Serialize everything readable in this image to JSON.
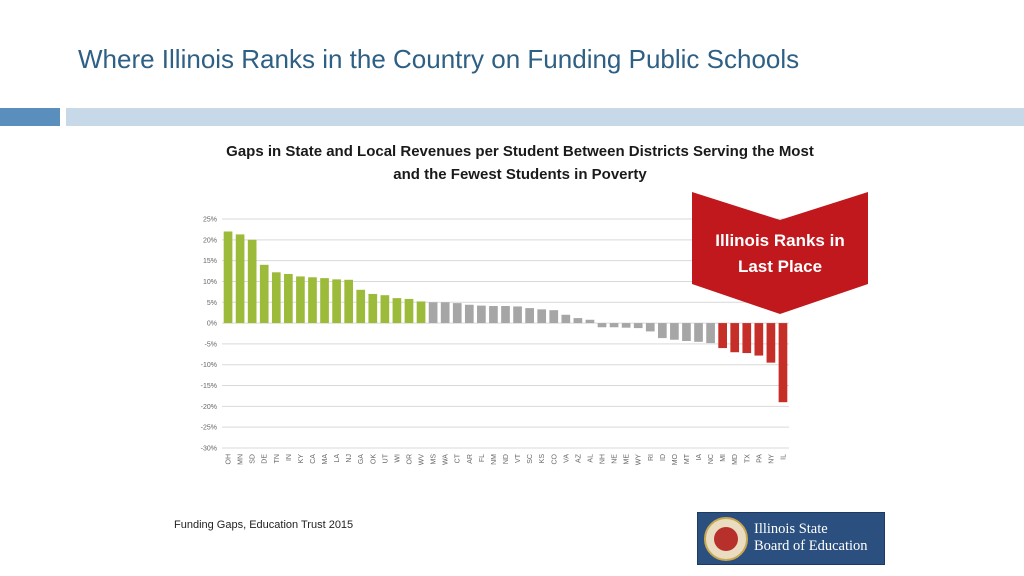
{
  "slide": {
    "title": "Where Illinois Ranks in the Country on Funding Public Schools",
    "source": "Funding Gaps, Education Trust 2015"
  },
  "callout": {
    "line1": "Illinois Ranks in",
    "line2": "Last Place",
    "color": "#c0181c"
  },
  "logo": {
    "line1": "Illinois State",
    "line2": "Board of Education"
  },
  "colors": {
    "positive": "#9dbb3a",
    "neutral": "#a6a6a6",
    "negative": "#c62e28",
    "title": "#2e5f84"
  },
  "chart_data": {
    "type": "bar",
    "title_line1": "Gaps in State and Local Revenues per Student Between Districts Serving the Most",
    "title_line2": "and the Fewest Students in Poverty",
    "ylim": [
      -30,
      25
    ],
    "yticks": [
      25,
      20,
      15,
      10,
      5,
      0,
      -5,
      -10,
      -15,
      -20,
      -25,
      -30
    ],
    "ytick_labels": [
      "25%",
      "20%",
      "15%",
      "10%",
      "5%",
      "0%",
      "-5%",
      "-10%",
      "-15%",
      "-20%",
      "-25%",
      "-30%"
    ],
    "grid": true,
    "categories": [
      "OH",
      "MN",
      "SD",
      "DE",
      "TN",
      "IN",
      "KY",
      "CA",
      "MA",
      "LA",
      "NJ",
      "GA",
      "OK",
      "UT",
      "WI",
      "OR",
      "WV",
      "MS",
      "WA",
      "CT",
      "AR",
      "FL",
      "NM",
      "ND",
      "VT",
      "SC",
      "KS",
      "CO",
      "VA",
      "AZ",
      "AL",
      "NH",
      "NE",
      "ME",
      "WY",
      "RI",
      "ID",
      "MO",
      "MT",
      "IA",
      "NC",
      "MI",
      "MD",
      "TX",
      "PA",
      "NY",
      "IL"
    ],
    "values": [
      22,
      21.3,
      20,
      14,
      12.2,
      11.8,
      11.2,
      11,
      10.8,
      10.5,
      10.4,
      8,
      7,
      6.7,
      6,
      5.8,
      5.2,
      5,
      5,
      4.8,
      4.4,
      4.2,
      4.1,
      4.1,
      4,
      3.6,
      3.3,
      3.1,
      2,
      1.2,
      0.8,
      -1,
      -1,
      -1.1,
      -1.2,
      -2,
      -3.6,
      -4,
      -4.3,
      -4.5,
      -4.8,
      -6,
      -7,
      -7.2,
      -7.8,
      -9.5,
      -19
    ],
    "bar_colors": [
      "positive",
      "positive",
      "positive",
      "positive",
      "positive",
      "positive",
      "positive",
      "positive",
      "positive",
      "positive",
      "positive",
      "positive",
      "positive",
      "positive",
      "positive",
      "positive",
      "positive",
      "neutral",
      "neutral",
      "neutral",
      "neutral",
      "neutral",
      "neutral",
      "neutral",
      "neutral",
      "neutral",
      "neutral",
      "neutral",
      "neutral",
      "neutral",
      "neutral",
      "neutral",
      "neutral",
      "neutral",
      "neutral",
      "neutral",
      "neutral",
      "neutral",
      "neutral",
      "neutral",
      "neutral",
      "negative",
      "negative",
      "negative",
      "negative",
      "negative",
      "negative"
    ]
  }
}
